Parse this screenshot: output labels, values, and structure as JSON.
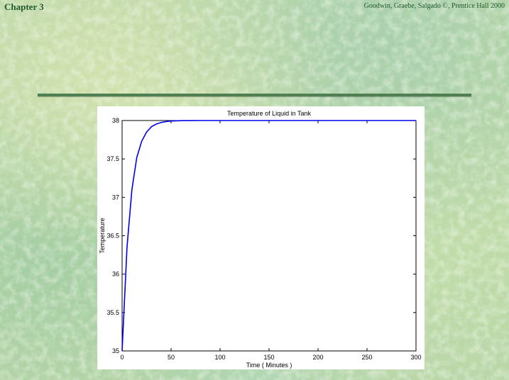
{
  "header": {
    "chapter": "Chapter 3",
    "credit": "Goodwin, Graebe, Salgado ©, Prentice Hall 2000"
  },
  "colors": {
    "background": "#b8d6a8",
    "heading_text": "#1f5a2e",
    "rule": "#4f7f52",
    "series_line": "#0000ee"
  },
  "chart_data": {
    "type": "line",
    "title": "Temperature of Liquid in Tank",
    "xlabel": "Time ( Minutes )",
    "ylabel": "Temperature",
    "xlim": [
      0,
      300
    ],
    "ylim": [
      35,
      38
    ],
    "xticks": [
      0,
      50,
      100,
      150,
      200,
      250,
      300
    ],
    "yticks": [
      35,
      35.5,
      36,
      36.5,
      37,
      37.5,
      38
    ],
    "ytick_labels": [
      "35",
      "35.5",
      "36",
      "36.5",
      "37",
      "37.5",
      "38"
    ],
    "grid": false,
    "series": [
      {
        "color": "#0000ee",
        "x": [
          0,
          5,
          10,
          15,
          20,
          25,
          30,
          35,
          40,
          45,
          50,
          55,
          60,
          70,
          80,
          90,
          100,
          150,
          200,
          250,
          300
        ],
        "y": [
          35,
          36.35,
          37.1,
          37.52,
          37.73,
          37.85,
          37.92,
          37.955,
          37.975,
          37.987,
          37.993,
          37.996,
          37.998,
          37.999,
          38,
          38,
          38,
          38,
          38,
          38,
          38
        ]
      }
    ]
  }
}
